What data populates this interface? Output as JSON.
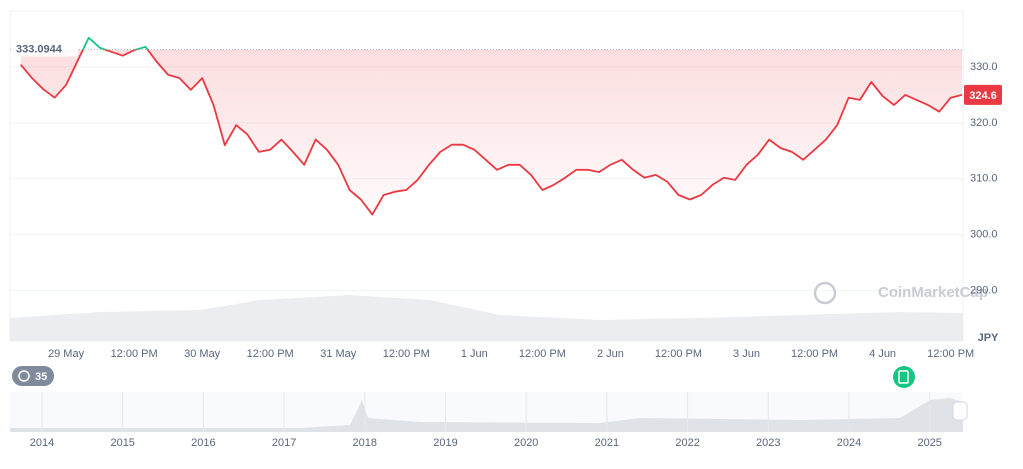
{
  "chart_data": {
    "type": "line",
    "series": [
      {
        "name": null,
        "color": "#ea3943",
        "up_color": "#16c784",
        "values": [
          330.4,
          328,
          326,
          324.5,
          326.8,
          331,
          335.2,
          333.4,
          332.7,
          332,
          333,
          333.6,
          330.9,
          328.6,
          328,
          325.9,
          328,
          323.2,
          316,
          319.6,
          317.9,
          314.8,
          315.2,
          317,
          314.8,
          312.5,
          317,
          315.2,
          312.5,
          308,
          306.3,
          303.6,
          307.1,
          307.7,
          308,
          309.8,
          312.5,
          314.8,
          316.1,
          316.1,
          315.2,
          313.4,
          311.6,
          312.5,
          312.5,
          310.7,
          308,
          308.9,
          310.2,
          311.6,
          311.6,
          311.2,
          312.5,
          313.4,
          311.6,
          310.2,
          310.7,
          309.5,
          307.1,
          306.3,
          307.1,
          308.9,
          310.2,
          309.8,
          312.5,
          314.3,
          317,
          315.5,
          314.8,
          313.4,
          315.2,
          317,
          319.6,
          324.5,
          324.1,
          327.3,
          324.8,
          323.2,
          325,
          324.1,
          323.2,
          322,
          324.5,
          325
        ]
      }
    ],
    "categories": [
      null,
      null,
      null,
      null,
      "29 May",
      null,
      null,
      null,
      null,
      null,
      "12:00 PM",
      null,
      null,
      null,
      null,
      null,
      "30 May",
      null,
      null,
      null,
      null,
      null,
      "12:00 PM",
      null,
      null,
      null,
      null,
      null,
      "31 May",
      null,
      null,
      null,
      null,
      null,
      "12:00 PM",
      null,
      null,
      null,
      null,
      null,
      "1 Jun",
      null,
      null,
      null,
      null,
      null,
      "12:00 PM",
      null,
      null,
      null,
      null,
      null,
      "2 Jun",
      null,
      null,
      null,
      null,
      null,
      "12:00 PM",
      null,
      null,
      null,
      null,
      null,
      "3 Jun",
      null,
      null,
      null,
      null,
      null,
      "12:00 PM",
      null,
      null,
      null,
      null,
      null,
      "4 Jun",
      null,
      null,
      null,
      null,
      null,
      "12:00 PM",
      null
    ],
    "ylim": [
      281,
      340
    ],
    "yticks": [
      {
        "value": 290,
        "label": "290.0"
      },
      {
        "value": 300,
        "label": "300.0"
      },
      {
        "value": 310,
        "label": "310.0"
      },
      {
        "value": 320,
        "label": "320.0"
      },
      {
        "value": 330,
        "label": "330.0"
      }
    ],
    "grid": true,
    "baseline": {
      "value": 333.0944,
      "label": "333.0944"
    },
    "current_price_label": "324.6",
    "currency": "JPY",
    "watermark": "CoinMarketCap",
    "badge": "35",
    "navigator": {
      "years": [
        "2014",
        "2015",
        "2016",
        "2017",
        "2018",
        "2019",
        "2020",
        "2021",
        "2022",
        "2023",
        "2024",
        "2025"
      ]
    }
  }
}
